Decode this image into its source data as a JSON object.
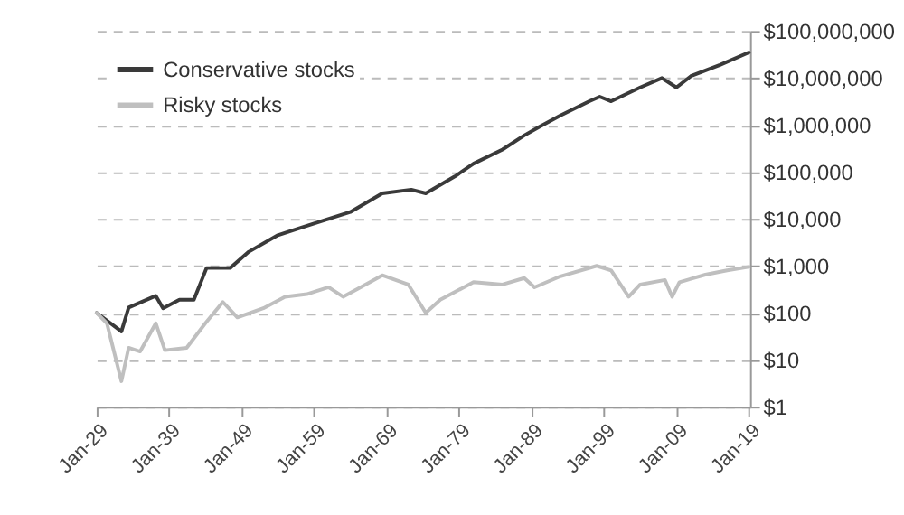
{
  "chart_data": {
    "type": "line",
    "log": "y",
    "grid": "y",
    "legend": "top left",
    "xlim": [
      "1929-01",
      "2019-03"
    ],
    "xticks": [
      {
        "value": "1929-01",
        "label": "Jan-29"
      },
      {
        "value": "1939-01",
        "label": "Jan-39"
      },
      {
        "value": "1949-01",
        "label": "Jan-49"
      },
      {
        "value": "1959-01",
        "label": "Jan-59"
      },
      {
        "value": "1969-01",
        "label": "Jan-69"
      },
      {
        "value": "1979-01",
        "label": "Jan-79"
      },
      {
        "value": "1989-01",
        "label": "Jan-89"
      },
      {
        "value": "1999-01",
        "label": "Jan-99"
      },
      {
        "value": "2009-01",
        "label": "Jan-09"
      },
      {
        "value": "2019-01",
        "label": "Jan-19"
      }
    ],
    "ylim": [
      1,
      100000000
    ],
    "yticks": [
      {
        "value": 1,
        "label": "$1"
      },
      {
        "value": 10,
        "label": "$10"
      },
      {
        "value": 100,
        "label": "$100"
      },
      {
        "value": 1000,
        "label": "$1,000"
      },
      {
        "value": 10000,
        "label": "$10,000"
      },
      {
        "value": 100000,
        "label": "$100,000"
      },
      {
        "value": 1000000,
        "label": "$1,000,000"
      },
      {
        "value": 10000000,
        "label": "$10,000,000"
      },
      {
        "value": 100000000,
        "label": "$100,000,000"
      }
    ],
    "series": [
      {
        "name": "Conservative stocks",
        "color": "#3a3a3a",
        "x": [
          "1929-01",
          "1932-06",
          "1933-06",
          "1937-03",
          "1938-03",
          "1940-06",
          "1942-06",
          "1944-03",
          "1947-06",
          "1950-01",
          "1954-01",
          "1959-01",
          "1964-01",
          "1968-06",
          "1972-06",
          "1974-06",
          "1978-06",
          "1981-01",
          "1985-01",
          "1988-01",
          "1990-01",
          "1993-01",
          "1997-01",
          "1998-06",
          "2000-01",
          "2004-01",
          "2007-01",
          "2009-01",
          "2011-01",
          "2015-01",
          "2019-01"
        ],
        "values": [
          100,
          40,
          130,
          230,
          125,
          190,
          190,
          900,
          900,
          2000,
          4500,
          8000,
          14000,
          35000,
          42000,
          35000,
          80000,
          150000,
          300000,
          600000,
          900000,
          1600000,
          3200000,
          4000000,
          3200000,
          6300000,
          10000000,
          6300000,
          11000000,
          19000000,
          35000000
        ]
      },
      {
        "name": "Risky stocks",
        "color": "#bfbfbf",
        "x": [
          "1929-01",
          "1930-06",
          "1932-06",
          "1933-06",
          "1935-01",
          "1937-03",
          "1938-06",
          "1941-06",
          "1944-01",
          "1946-06",
          "1948-06",
          "1952-01",
          "1955-01",
          "1958-01",
          "1961-01",
          "1963-01",
          "1965-06",
          "1968-06",
          "1972-01",
          "1974-06",
          "1976-06",
          "1981-01",
          "1985-01",
          "1988-01",
          "1989-06",
          "1993-01",
          "1998-01",
          "2000-01",
          "2002-06",
          "2004-01",
          "2007-06",
          "2008-06",
          "2009-06",
          "2013-01",
          "2016-01",
          "2019-01"
        ],
        "values": [
          100,
          60,
          3.5,
          18,
          15,
          60,
          16,
          18,
          60,
          170,
          80,
          125,
          220,
          250,
          350,
          220,
          350,
          630,
          400,
          100,
          190,
          450,
          400,
          550,
          350,
          600,
          1000,
          800,
          220,
          400,
          500,
          220,
          450,
          650,
          800,
          950
        ]
      }
    ]
  }
}
